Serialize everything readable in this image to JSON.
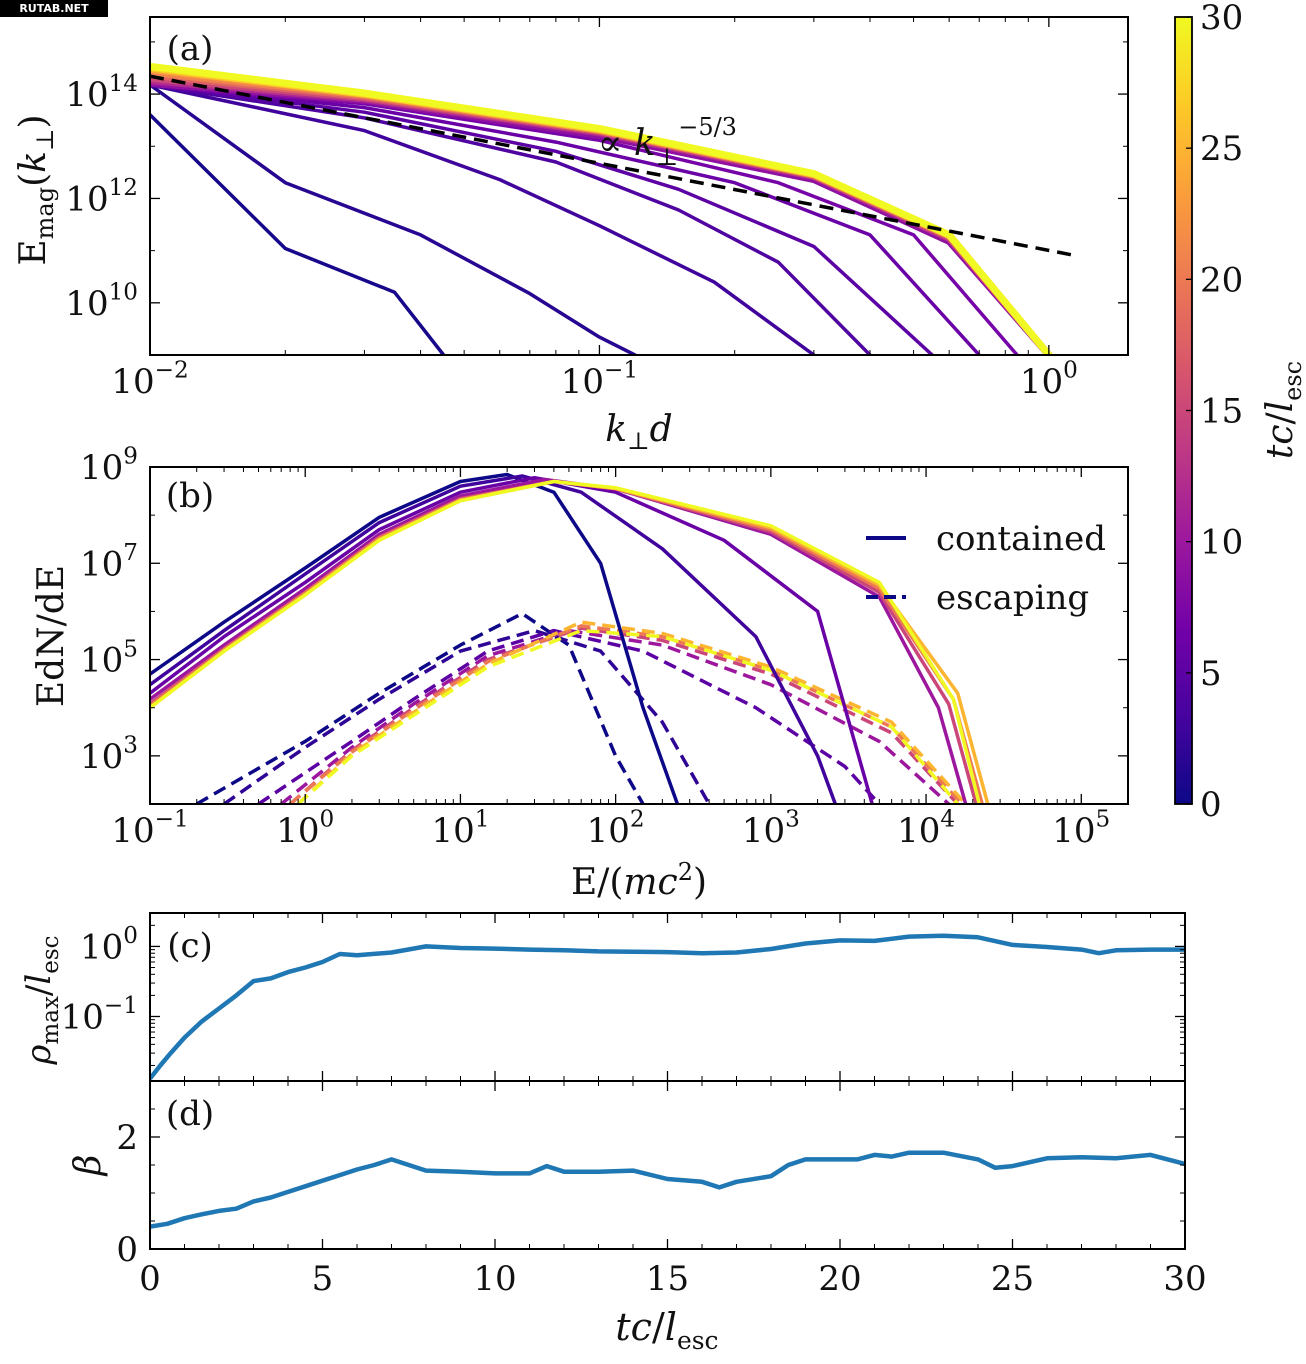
{
  "watermark": "RUTAB.NET",
  "colorbar": {
    "label": "tc/l",
    "label_sub": "esc",
    "range": [
      0,
      30
    ],
    "ticks": [
      0,
      5,
      10,
      15,
      20,
      25,
      30
    ],
    "colormap": "plasma",
    "stops": [
      "#0d0887",
      "#46039f",
      "#7201a8",
      "#9c179e",
      "#bd3786",
      "#d8576b",
      "#ed7953",
      "#fb9f3a",
      "#fdca26",
      "#f0f921"
    ]
  },
  "chart_data": [
    {
      "panel": "(a)",
      "type": "line",
      "xscale": "log",
      "yscale": "log",
      "xlabel": "k⊥d",
      "ylabel": "E_mag(k⊥)",
      "xlim": [
        0.01,
        1.5
      ],
      "ylim": [
        1000000000.0,
        3000000000000000.0
      ],
      "xticks": [
        {
          "v": 0.01,
          "base": "10",
          "exp": "−2"
        },
        {
          "v": 0.1,
          "base": "10",
          "exp": "−1"
        },
        {
          "v": 1,
          "base": "10",
          "exp": "0"
        }
      ],
      "yticks": [
        {
          "v": 10000000000.0,
          "base": "10",
          "exp": "10"
        },
        {
          "v": 1000000000000.0,
          "base": "10",
          "exp": "12"
        },
        {
          "v": 100000000000000.0,
          "base": "10",
          "exp": "14"
        }
      ],
      "annotation": "∝ k⊥^(−5/3)",
      "reference": {
        "name": "∝ k⊥^(−5/3)",
        "style": "dashed",
        "color": "#000000",
        "x": [
          0.01,
          1.15
        ],
        "y": [
          220000000000000.0,
          80000000000.0
        ]
      },
      "series": [
        {
          "t": 0.5,
          "x": [
            0.01,
            0.02,
            0.035,
            0.045
          ],
          "y": [
            40000000000000.0,
            110000000000.0,
            16000000000.0,
            1000000000.0
          ]
        },
        {
          "t": 1.5,
          "x": [
            0.01,
            0.02,
            0.04,
            0.07,
            0.1,
            0.12
          ],
          "y": [
            150000000000000.0,
            2000000000000.0,
            200000000000.0,
            15000000000.0,
            2200000000.0,
            1000000000.0
          ]
        },
        {
          "t": 3,
          "x": [
            0.01,
            0.03,
            0.06,
            0.1,
            0.18,
            0.3
          ],
          "y": [
            150000000000000.0,
            20000000000000.0,
            2300000000000.0,
            300000000000.0,
            25000000000.0,
            1000000000.0
          ]
        },
        {
          "t": 4,
          "x": [
            0.01,
            0.03,
            0.08,
            0.15,
            0.25,
            0.4
          ],
          "y": [
            150000000000000.0,
            35000000000000.0,
            5000000000000.0,
            600000000000.0,
            60000000000.0,
            1000000000.0
          ]
        },
        {
          "t": 5,
          "x": [
            0.01,
            0.03,
            0.08,
            0.15,
            0.3,
            0.55
          ],
          "y": [
            150000000000000.0,
            45000000000000.0,
            8000000000000.0,
            1500000000000.0,
            120000000000.0,
            1000000000.0
          ]
        },
        {
          "t": 6,
          "x": [
            0.01,
            0.03,
            0.08,
            0.2,
            0.4,
            0.7
          ],
          "y": [
            150000000000000.0,
            55000000000000.0,
            12000000000000.0,
            2000000000000.0,
            200000000000.0,
            1000000000.0
          ]
        },
        {
          "t": 7,
          "x": [
            0.01,
            0.03,
            0.1,
            0.25,
            0.5,
            0.85
          ],
          "y": [
            150000000000000.0,
            65000000000000.0,
            13000000000000.0,
            2000000000000.0,
            200000000000.0,
            1000000000.0
          ]
        },
        {
          "t": 9,
          "x": [
            0.01,
            0.03,
            0.1,
            0.3,
            0.6,
            1.0
          ],
          "y": [
            160000000000000.0,
            75000000000000.0,
            16000000000000.0,
            2300000000000.0,
            150000000000.0,
            1000000000.0
          ]
        },
        {
          "t": 12,
          "x": [
            0.01,
            0.03,
            0.1,
            0.3,
            0.6,
            1.0
          ],
          "y": [
            180000000000000.0,
            80000000000000.0,
            18000000000000.0,
            2600000000000.0,
            170000000000.0,
            1000000000.0
          ]
        },
        {
          "t": 15,
          "x": [
            0.01,
            0.03,
            0.1,
            0.3,
            0.6,
            1.0
          ],
          "y": [
            200000000000000.0,
            85000000000000.0,
            19000000000000.0,
            2700000000000.0,
            180000000000.0,
            1000000000.0
          ]
        },
        {
          "t": 18,
          "x": [
            0.01,
            0.03,
            0.1,
            0.3,
            0.6,
            1.0
          ],
          "y": [
            230000000000000.0,
            90000000000000.0,
            20000000000000.0,
            2800000000000.0,
            190000000000.0,
            1000000000.0
          ]
        },
        {
          "t": 21,
          "x": [
            0.01,
            0.03,
            0.1,
            0.3,
            0.6,
            1.0
          ],
          "y": [
            260000000000000.0,
            95000000000000.0,
            20000000000000.0,
            2800000000000.0,
            190000000000.0,
            1000000000.0
          ]
        },
        {
          "t": 24,
          "x": [
            0.01,
            0.03,
            0.1,
            0.3,
            0.6,
            1.0
          ],
          "y": [
            300000000000000.0,
            100000000000000.0,
            21000000000000.0,
            2900000000000.0,
            200000000000.0,
            1000000000.0
          ]
        },
        {
          "t": 27,
          "x": [
            0.01,
            0.03,
            0.1,
            0.3,
            0.6,
            1.0
          ],
          "y": [
            320000000000000.0,
            100000000000000.0,
            21000000000000.0,
            2900000000000.0,
            200000000000.0,
            1000000000.0
          ]
        },
        {
          "t": 30,
          "x": [
            0.01,
            0.03,
            0.1,
            0.3,
            0.6,
            1.0
          ],
          "y": [
            340000000000000.0,
            105000000000000.0,
            22000000000000.0,
            3000000000000.0,
            200000000000.0,
            1000000000.0
          ]
        }
      ]
    },
    {
      "panel": "(b)",
      "type": "line",
      "xscale": "log",
      "yscale": "log",
      "xlabel": "E/(mc²)",
      "ylabel": "EdN/dE",
      "xlim": [
        0.1,
        200000
      ],
      "ylim": [
        100,
        1000000000.0
      ],
      "xticks": [
        {
          "v": 0.1,
          "base": "10",
          "exp": "−1"
        },
        {
          "v": 1,
          "base": "10",
          "exp": "0"
        },
        {
          "v": 10,
          "base": "10",
          "exp": "1"
        },
        {
          "v": 100,
          "base": "10",
          "exp": "2"
        },
        {
          "v": 1000,
          "base": "10",
          "exp": "3"
        },
        {
          "v": 10000,
          "base": "10",
          "exp": "4"
        },
        {
          "v": 100000,
          "base": "10",
          "exp": "5"
        }
      ],
      "yticks": [
        {
          "v": 1000,
          "base": "10",
          "exp": "3"
        },
        {
          "v": 100000,
          "base": "10",
          "exp": "5"
        },
        {
          "v": 10000000,
          "base": "10",
          "exp": "7"
        },
        {
          "v": 1000000000,
          "base": "10",
          "exp": "9"
        }
      ],
      "legend": {
        "placement": "top-right",
        "entries": [
          {
            "label": "contained",
            "style": "solid"
          },
          {
            "label": "escaping",
            "style": "dashed"
          }
        ]
      },
      "contained": [
        {
          "t": 0,
          "x": [
            0.1,
            0.3,
            1,
            3,
            10,
            20,
            40,
            80,
            150,
            250
          ],
          "y": [
            50000.0,
            600000.0,
            8000000.0,
            90000000.0,
            500000000.0,
            700000000.0,
            300000000.0,
            10000000.0,
            10000.0,
            100
          ]
        },
        {
          "t": 3,
          "x": [
            0.1,
            0.3,
            1,
            3,
            10,
            25,
            60,
            200,
            800,
            2000,
            2600
          ],
          "y": [
            30000.0,
            400000.0,
            6000000.0,
            70000000.0,
            400000000.0,
            650000000.0,
            300000000.0,
            20000000.0,
            300000.0,
            1000.0,
            100
          ]
        },
        {
          "t": 6,
          "x": [
            0.1,
            0.3,
            1,
            3,
            10,
            30,
            100,
            500,
            2000,
            4500
          ],
          "y": [
            20000.0,
            300000.0,
            4000000.0,
            50000000.0,
            300000000.0,
            600000000.0,
            300000000.0,
            30000000.0,
            1000000.0,
            100
          ]
        },
        {
          "t": 10,
          "x": [
            0.1,
            0.3,
            1,
            3,
            10,
            35,
            100,
            1000,
            5000,
            12000,
            18000
          ],
          "y": [
            15000.0,
            200000.0,
            3000000.0,
            40000000.0,
            250000000.0,
            550000000.0,
            350000000.0,
            40000000.0,
            2000000.0,
            10000.0,
            100
          ]
        },
        {
          "t": 15,
          "x": [
            0.1,
            0.3,
            1,
            3,
            10,
            40,
            100,
            1000,
            5000,
            14000,
            21000
          ],
          "y": [
            12000.0,
            170000.0,
            2500000.0,
            35000000.0,
            220000000.0,
            500000000.0,
            350000000.0,
            45000000.0,
            2500000.0,
            12000.0,
            100
          ]
        },
        {
          "t": 20,
          "x": [
            0.1,
            0.3,
            1,
            3,
            10,
            40,
            100,
            1000,
            5000,
            15000,
            23000
          ],
          "y": [
            11000.0,
            160000.0,
            2400000.0,
            33000000.0,
            210000000.0,
            500000000.0,
            360000000.0,
            50000000.0,
            3000000.0,
            15000.0,
            100
          ]
        },
        {
          "t": 25,
          "x": [
            0.1,
            0.3,
            1,
            3,
            10,
            40,
            100,
            1000,
            5000,
            16000,
            25000
          ],
          "y": [
            10000.0,
            150000.0,
            2200000.0,
            31000000.0,
            200000000.0,
            500000000.0,
            360000000.0,
            55000000.0,
            3500000.0,
            20000.0,
            100
          ]
        },
        {
          "t": 30,
          "x": [
            0.1,
            0.3,
            1,
            3,
            10,
            40,
            100,
            1000,
            5000,
            15000,
            22000
          ],
          "y": [
            10000.0,
            150000.0,
            2200000.0,
            30000000.0,
            200000000.0,
            500000000.0,
            370000000.0,
            60000000.0,
            4000000.0,
            15000.0,
            100
          ]
        }
      ],
      "escaping": [
        {
          "t": 0,
          "x": [
            0.2,
            1,
            3,
            10,
            25,
            50,
            100,
            150
          ],
          "y": [
            100,
            2000.0,
            20000.0,
            200000.0,
            900000.0,
            200000.0,
            1000.0,
            100
          ]
        },
        {
          "t": 2,
          "x": [
            0.3,
            1,
            3,
            10,
            30,
            80,
            200,
            400
          ],
          "y": [
            100,
            1500.0,
            15000.0,
            150000.0,
            400000.0,
            150000.0,
            5000.0,
            100
          ]
        },
        {
          "t": 5,
          "x": [
            0.5,
            2,
            5,
            15,
            40,
            150,
            800,
            3000,
            5000
          ],
          "y": [
            100,
            2000.0,
            15000.0,
            150000.0,
            400000.0,
            150000.0,
            10000.0,
            600,
            100
          ]
        },
        {
          "t": 10,
          "x": [
            0.7,
            2,
            5,
            15,
            50,
            200,
            1000,
            5000,
            14000
          ],
          "y": [
            100,
            1500.0,
            12000.0,
            120000.0,
            400000.0,
            200000.0,
            30000.0,
            2000.0,
            100
          ]
        },
        {
          "t": 15,
          "x": [
            0.8,
            2,
            5,
            15,
            60,
            200,
            1000,
            6000,
            16000
          ],
          "y": [
            100,
            1300.0,
            10000.0,
            100000.0,
            450000.0,
            250000.0,
            50000.0,
            3000.0,
            100
          ]
        },
        {
          "t": 20,
          "x": [
            0.8,
            2,
            5,
            15,
            60,
            200,
            1000,
            6000,
            17000
          ],
          "y": [
            100,
            1200.0,
            9000.0,
            90000.0,
            500000.0,
            300000.0,
            60000.0,
            4000.0,
            100
          ]
        },
        {
          "t": 25,
          "x": [
            0.9,
            2,
            5,
            15,
            60,
            200,
            1000,
            6000,
            18000
          ],
          "y": [
            100,
            1100.0,
            8000.0,
            80000.0,
            600000.0,
            350000.0,
            70000.0,
            5000.0,
            100
          ]
        },
        {
          "t": 30,
          "x": [
            0.9,
            2,
            5,
            15,
            60,
            200,
            1000,
            6000,
            16000
          ],
          "y": [
            100,
            1000.0,
            7000.0,
            70000.0,
            400000.0,
            300000.0,
            60000.0,
            4000.0,
            100
          ]
        }
      ]
    },
    {
      "panel": "(c)",
      "type": "line",
      "xscale": "linear",
      "yscale": "log",
      "ylabel": "ρmax/lesc",
      "xlim": [
        0,
        30
      ],
      "ylim": [
        0.012,
        3
      ],
      "yticks": [
        {
          "v": 0.1,
          "base": "10",
          "exp": "−1"
        },
        {
          "v": 1,
          "base": "10",
          "exp": "0"
        }
      ],
      "color": "#1f77b4",
      "x": [
        0,
        0.3,
        0.6,
        1,
        1.5,
        2,
        2.5,
        3,
        3.5,
        4,
        4.5,
        5,
        5.5,
        6,
        7,
        8,
        9,
        10,
        11,
        12,
        13,
        14,
        15,
        16,
        17,
        18,
        19,
        20,
        21,
        22,
        23,
        24,
        25,
        26,
        27,
        27.5,
        28,
        29,
        30
      ],
      "y": [
        0.013,
        0.02,
        0.03,
        0.05,
        0.085,
        0.13,
        0.2,
        0.32,
        0.35,
        0.43,
        0.5,
        0.6,
        0.78,
        0.75,
        0.82,
        1.0,
        0.95,
        0.93,
        0.9,
        0.88,
        0.85,
        0.84,
        0.83,
        0.8,
        0.82,
        0.92,
        1.1,
        1.22,
        1.2,
        1.38,
        1.42,
        1.35,
        1.05,
        0.98,
        0.9,
        0.8,
        0.88,
        0.9,
        0.9
      ]
    },
    {
      "panel": "(d)",
      "type": "line",
      "xscale": "linear",
      "yscale": "linear",
      "xlabel": "tc/lesc",
      "ylabel": "β",
      "xlim": [
        0,
        30
      ],
      "ylim": [
        0,
        3
      ],
      "xticks": [
        0,
        5,
        10,
        15,
        20,
        25,
        30
      ],
      "yticks": [
        0,
        2
      ],
      "color": "#1f77b4",
      "x": [
        0,
        0.5,
        1,
        1.5,
        2,
        2.5,
        3,
        3.5,
        4,
        4.5,
        5,
        5.5,
        6,
        6.5,
        7,
        7.5,
        8,
        9,
        10,
        11,
        11.5,
        12,
        13,
        14,
        15,
        16,
        16.5,
        17,
        18,
        18.5,
        19,
        20,
        20.5,
        21,
        21.5,
        22,
        23,
        24,
        24.5,
        25,
        26,
        27,
        28,
        29,
        30
      ],
      "y": [
        0.4,
        0.45,
        0.55,
        0.62,
        0.68,
        0.72,
        0.85,
        0.92,
        1.02,
        1.12,
        1.22,
        1.32,
        1.42,
        1.5,
        1.6,
        1.5,
        1.4,
        1.38,
        1.35,
        1.35,
        1.48,
        1.38,
        1.38,
        1.4,
        1.25,
        1.2,
        1.1,
        1.2,
        1.3,
        1.5,
        1.6,
        1.6,
        1.6,
        1.68,
        1.65,
        1.72,
        1.72,
        1.6,
        1.45,
        1.48,
        1.62,
        1.64,
        1.62,
        1.68,
        1.52
      ]
    }
  ]
}
